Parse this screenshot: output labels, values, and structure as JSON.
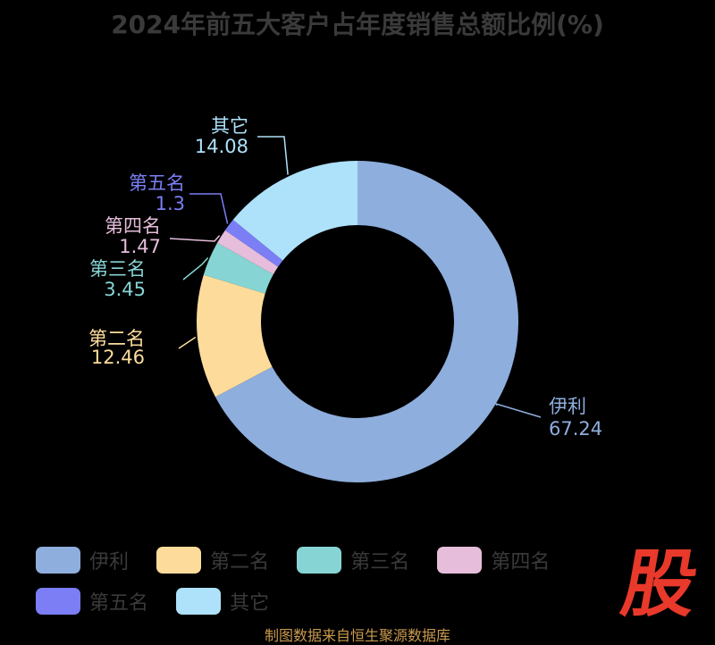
{
  "title": "2024年前五大客户占年度销售总额比例(%)",
  "chart_data": {
    "type": "pie",
    "variant": "donut",
    "categories": [
      "伊利",
      "第二名",
      "第三名",
      "第四名",
      "第五名",
      "其它"
    ],
    "values": [
      67.24,
      12.46,
      3.45,
      1.47,
      1.3,
      14.08
    ],
    "value_labels": [
      "67.24",
      "12.46",
      "3.45",
      "1.47",
      "1.3",
      "14.08"
    ],
    "colors": [
      "#8eaedd",
      "#fddc9b",
      "#86d5d4",
      "#e6bddb",
      "#7b7ef5",
      "#aee1fa"
    ],
    "legend_placement": "bottom"
  },
  "watermark": "股",
  "source": "制图数据来自恒生聚源数据库"
}
